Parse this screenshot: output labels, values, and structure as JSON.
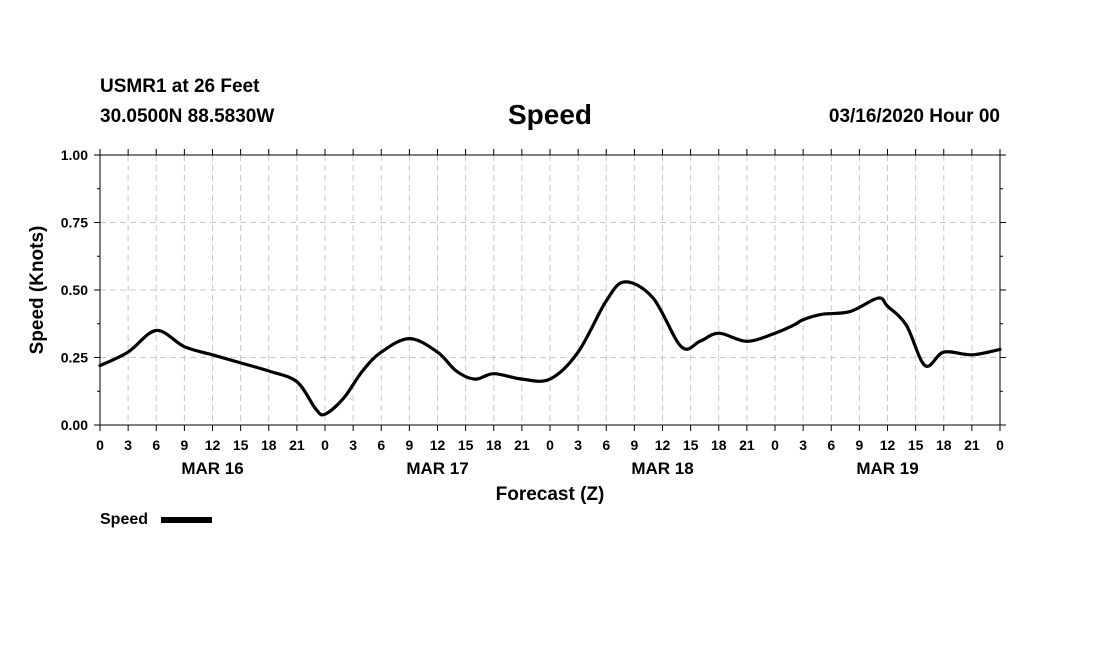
{
  "header": {
    "station": "USMR1 at 26 Feet",
    "coordinates": "30.0500N 88.5830W",
    "title": "Speed",
    "datetime": "03/16/2020 Hour 00"
  },
  "chart_data": {
    "type": "line",
    "title": "Speed",
    "xlabel": "Forecast (Z)",
    "ylabel": "Speed (Knots)",
    "ylim": [
      0,
      1.0
    ],
    "yticks": [
      "0.00",
      "0.25",
      "0.50",
      "0.75",
      "1.00"
    ],
    "xlim": [
      0,
      96
    ],
    "xtick_step_hours": 3,
    "xtick_labels": [
      "0",
      "3",
      "6",
      "9",
      "12",
      "15",
      "18",
      "21",
      "0",
      "3",
      "6",
      "9",
      "12",
      "15",
      "18",
      "21",
      "0",
      "3",
      "6",
      "9",
      "12",
      "15",
      "18",
      "21",
      "0",
      "3",
      "6",
      "9",
      "12",
      "15",
      "18",
      "21",
      "0"
    ],
    "day_labels": [
      {
        "label": "MAR 16",
        "hour": 12
      },
      {
        "label": "MAR 17",
        "hour": 36
      },
      {
        "label": "MAR 18",
        "hour": 60
      },
      {
        "label": "MAR 19",
        "hour": 84
      }
    ],
    "grid": true,
    "legend": {
      "label": "Speed",
      "position": "bottom-left"
    },
    "series": [
      {
        "name": "Speed",
        "color": "#000000",
        "x": [
          0,
          3,
          6,
          9,
          12,
          15,
          18,
          21,
          23,
          24,
          26,
          28,
          30,
          33,
          36,
          38,
          40,
          42,
          45,
          48,
          51,
          54,
          56,
          59,
          62,
          64,
          66,
          69,
          72,
          74,
          75,
          77,
          80,
          83,
          84,
          86,
          88,
          90,
          93,
          96
        ],
        "y": [
          0.22,
          0.27,
          0.35,
          0.29,
          0.26,
          0.23,
          0.2,
          0.16,
          0.06,
          0.04,
          0.1,
          0.2,
          0.27,
          0.32,
          0.27,
          0.2,
          0.17,
          0.19,
          0.17,
          0.17,
          0.27,
          0.46,
          0.53,
          0.47,
          0.29,
          0.31,
          0.34,
          0.31,
          0.34,
          0.37,
          0.39,
          0.41,
          0.42,
          0.47,
          0.44,
          0.37,
          0.22,
          0.27,
          0.26,
          0.28
        ]
      }
    ]
  }
}
